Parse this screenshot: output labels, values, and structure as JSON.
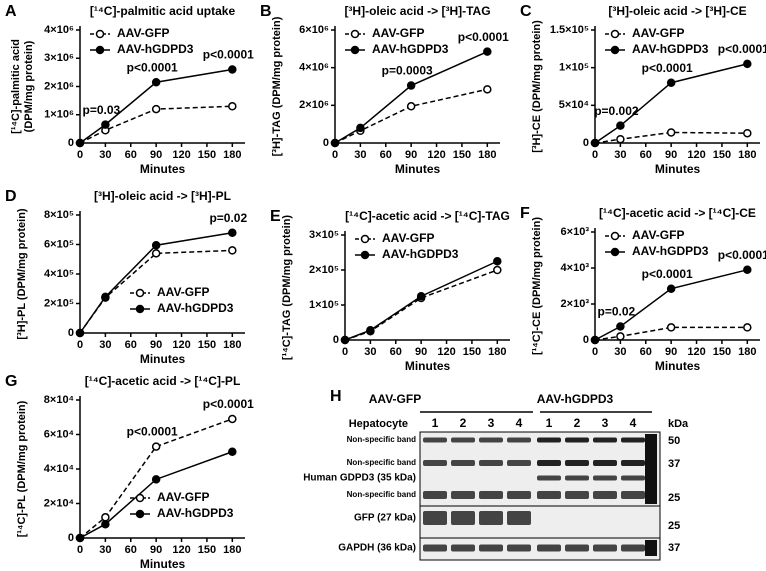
{
  "chart_data": [
    {
      "type": "line",
      "panel": "A",
      "title": "[¹⁴C]-palmitic acid uptake",
      "x_label": "Minutes",
      "y_label": [
        "[¹⁴C]-palmitic acid",
        "(DPM/mg protein)"
      ],
      "x": [
        0,
        30,
        90,
        180
      ],
      "xlim": [
        0,
        195
      ],
      "xticks": [
        0,
        30,
        60,
        90,
        120,
        150,
        180
      ],
      "ylim": [
        0,
        4000000
      ],
      "yticks": [
        0,
        {
          "value": 1000000,
          "label": "1×10⁶"
        },
        {
          "value": 2000000,
          "label": "2×10⁶"
        },
        {
          "value": 3000000,
          "label": "3×10⁶"
        },
        {
          "value": 4000000,
          "label": "4×10⁶"
        }
      ],
      "legend": "upper left",
      "annotations": [
        "p=0.03",
        "p<0.0001",
        "p<0.0001"
      ],
      "series": [
        {
          "name": "AAV-GFP",
          "color": "#000000",
          "style": "dashed",
          "marker": "open",
          "values": [
            0,
            450000,
            1200000,
            1300000
          ]
        },
        {
          "name": "AAV-hGDPD3",
          "color": "#000000",
          "style": "solid",
          "marker": "filled",
          "values": [
            0,
            650000,
            2150000,
            2600000
          ]
        }
      ]
    },
    {
      "type": "line",
      "panel": "B",
      "title": "[³H]-oleic acid -> [³H]-TAG",
      "x_label": "Minutes",
      "y_label": "[³H]-TAG (DPM/mg protein)",
      "x": [
        0,
        30,
        90,
        180
      ],
      "xlim": [
        0,
        195
      ],
      "xticks": [
        0,
        30,
        60,
        90,
        120,
        150,
        180
      ],
      "ylim": [
        0,
        6000000
      ],
      "yticks": [
        0,
        {
          "value": 2000000,
          "label": "2×10⁶"
        },
        {
          "value": 4000000,
          "label": "4×10⁶"
        },
        {
          "value": 6000000,
          "label": "6×10⁶"
        }
      ],
      "legend": "upper left",
      "annotations": [
        "p=0.0003",
        "p<0.0001"
      ],
      "series": [
        {
          "name": "AAV-GFP",
          "color": "#000000",
          "style": "dashed",
          "marker": "open",
          "values": [
            0,
            650000,
            1950000,
            2850000
          ]
        },
        {
          "name": "AAV-hGDPD3",
          "color": "#000000",
          "style": "solid",
          "marker": "filled",
          "values": [
            0,
            800000,
            3050000,
            4850000
          ]
        }
      ]
    },
    {
      "type": "line",
      "panel": "C",
      "title": "[³H]-oleic acid -> [³H]-CE",
      "x_label": "Minutes",
      "y_label": "[³H]-CE (DPM/mg protein)",
      "x": [
        0,
        30,
        90,
        180
      ],
      "xlim": [
        0,
        195
      ],
      "xticks": [
        0,
        30,
        60,
        90,
        120,
        150,
        180
      ],
      "ylim": [
        0,
        150000
      ],
      "yticks": [
        0,
        {
          "value": 50000,
          "label": "5×10⁴"
        },
        {
          "value": 100000,
          "label": "1×10⁵"
        },
        {
          "value": 150000,
          "label": "1.5×10⁵"
        }
      ],
      "legend": "upper left",
      "annotations": [
        "p=0.002",
        "p<0.0001",
        "p<0.0001"
      ],
      "series": [
        {
          "name": "AAV-GFP",
          "color": "#000000",
          "style": "dashed",
          "marker": "open",
          "values": [
            0,
            5000,
            14000,
            13000
          ]
        },
        {
          "name": "AAV-hGDPD3",
          "color": "#000000",
          "style": "solid",
          "marker": "filled",
          "values": [
            0,
            23000,
            80000,
            105000
          ]
        }
      ]
    },
    {
      "type": "line",
      "panel": "D",
      "title": "[³H]-oleic acid -> [³H]-PL",
      "x_label": "Minutes",
      "y_label": "[³H]-PL (DPM/mg protein)",
      "x": [
        0,
        30,
        90,
        180
      ],
      "xlim": [
        0,
        195
      ],
      "xticks": [
        0,
        30,
        60,
        90,
        120,
        150,
        180
      ],
      "ylim": [
        0,
        800000
      ],
      "yticks": [
        0,
        {
          "value": 200000,
          "label": "2×10⁵"
        },
        {
          "value": 400000,
          "label": "4×10⁵"
        },
        {
          "value": 600000,
          "label": "6×10⁵"
        },
        {
          "value": 800000,
          "label": "8×10⁵"
        }
      ],
      "legend": "lower right",
      "annotations": [
        "p=0.02"
      ],
      "series": [
        {
          "name": "AAV-GFP",
          "color": "#000000",
          "style": "dashed",
          "marker": "open",
          "values": [
            0,
            240000,
            540000,
            560000
          ]
        },
        {
          "name": "AAV-hGDPD3",
          "color": "#000000",
          "style": "solid",
          "marker": "filled",
          "values": [
            0,
            245000,
            595000,
            680000
          ]
        }
      ]
    },
    {
      "type": "line",
      "panel": "E",
      "title": "[¹⁴C]-acetic acid -> [¹⁴C]-TAG",
      "x_label": "Minutes",
      "y_label": "[¹⁴C]-TAG (DPM/mg protein)",
      "x": [
        0,
        30,
        90,
        180
      ],
      "xlim": [
        0,
        195
      ],
      "xticks": [
        0,
        30,
        60,
        90,
        120,
        150,
        180
      ],
      "ylim": [
        0,
        300000
      ],
      "yticks": [
        0,
        {
          "value": 100000,
          "label": "1×10⁵"
        },
        {
          "value": 200000,
          "label": "2×10⁵"
        },
        {
          "value": 300000,
          "label": "3×10⁵"
        }
      ],
      "legend": "upper left",
      "annotations": [],
      "series": [
        {
          "name": "AAV-GFP",
          "color": "#000000",
          "style": "dashed",
          "marker": "open",
          "values": [
            0,
            25000,
            120000,
            200000
          ]
        },
        {
          "name": "AAV-hGDPD3",
          "color": "#000000",
          "style": "solid",
          "marker": "filled",
          "values": [
            0,
            28000,
            125000,
            225000
          ]
        }
      ]
    },
    {
      "type": "line",
      "panel": "F",
      "title": "[¹⁴C]-acetic acid -> [¹⁴C]-CE",
      "x_label": "Minutes",
      "y_label": "[¹⁴C]-CE (DPM/mg protein)",
      "x": [
        0,
        30,
        90,
        180
      ],
      "xlim": [
        0,
        195
      ],
      "xticks": [
        0,
        30,
        60,
        90,
        120,
        150,
        180
      ],
      "ylim": [
        0,
        6000
      ],
      "yticks": [
        0,
        {
          "value": 2000,
          "label": "2×10³"
        },
        {
          "value": 4000,
          "label": "4×10³"
        },
        {
          "value": 6000,
          "label": "6×10³"
        }
      ],
      "legend": "upper left",
      "annotations": [
        "p=0.02",
        "p<0.0001",
        "p<0.0001"
      ],
      "series": [
        {
          "name": "AAV-GFP",
          "color": "#000000",
          "style": "dashed",
          "marker": "open",
          "values": [
            0,
            200,
            700,
            700
          ]
        },
        {
          "name": "AAV-hGDPD3",
          "color": "#000000",
          "style": "solid",
          "marker": "filled",
          "values": [
            0,
            750,
            2850,
            3900
          ]
        }
      ]
    },
    {
      "type": "line",
      "panel": "G",
      "title": "[¹⁴C]-acetic acid -> [¹⁴C]-PL",
      "x_label": "Minutes",
      "y_label": "[¹⁴C]-PL (DPM/mg protein)",
      "x": [
        0,
        30,
        90,
        180
      ],
      "xlim": [
        0,
        195
      ],
      "xticks": [
        0,
        30,
        60,
        90,
        120,
        150,
        180
      ],
      "ylim": [
        0,
        80000
      ],
      "yticks": [
        0,
        {
          "value": 20000,
          "label": "2×10⁴"
        },
        {
          "value": 40000,
          "label": "4×10⁴"
        },
        {
          "value": 60000,
          "label": "6×10⁴"
        },
        {
          "value": 80000,
          "label": "8×10⁴"
        }
      ],
      "legend": "lower right",
      "annotations": [
        "p<0.0001",
        "p<0.0001"
      ],
      "series": [
        {
          "name": "AAV-GFP",
          "color": "#000000",
          "style": "dashed",
          "marker": "open",
          "values": [
            0,
            12000,
            53000,
            69000
          ]
        },
        {
          "name": "AAV-hGDPD3",
          "color": "#000000",
          "style": "solid",
          "marker": "filled",
          "values": [
            0,
            8000,
            34000,
            50000
          ]
        }
      ]
    }
  ],
  "blot": {
    "panel": "H",
    "groups": [
      "AAV-GFP",
      "AAV-hGDPD3"
    ],
    "row_label": "Hepatocyte",
    "lanes": [
      "1",
      "2",
      "3",
      "4",
      "1",
      "2",
      "3",
      "4"
    ],
    "unit": "kDa",
    "bands": [
      "Non-specific band",
      "Non-specific band",
      "Human GDPD3 (35 kDa)",
      "Non-specific band",
      "GFP (27 kDa)",
      "GAPDH (36 kDa)"
    ],
    "markers": [
      "50",
      "37",
      "25",
      "25",
      "37"
    ]
  }
}
